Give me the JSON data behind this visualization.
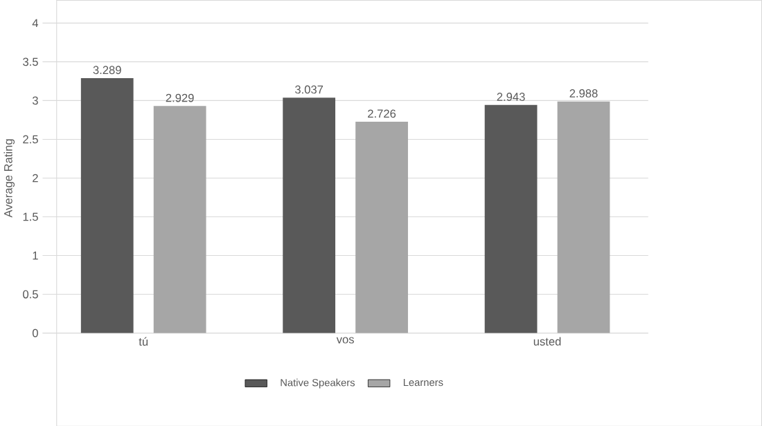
{
  "chart_data": {
    "type": "bar",
    "ylabel": "Average Rating",
    "categories": [
      "tú",
      "vos",
      "usted"
    ],
    "series": [
      {
        "name": "Native Speakers",
        "color": "#595959",
        "values": [
          3.289,
          3.037,
          2.943
        ]
      },
      {
        "name": "Learners",
        "color": "#a6a6a6",
        "values": [
          2.929,
          2.726,
          2.988
        ]
      }
    ],
    "ylim": [
      0,
      4
    ],
    "yticks": [
      0,
      0.5,
      1,
      1.5,
      2,
      2.5,
      3,
      3.5,
      4
    ],
    "grid": "y",
    "legend": "bottom",
    "data_labels": true
  }
}
